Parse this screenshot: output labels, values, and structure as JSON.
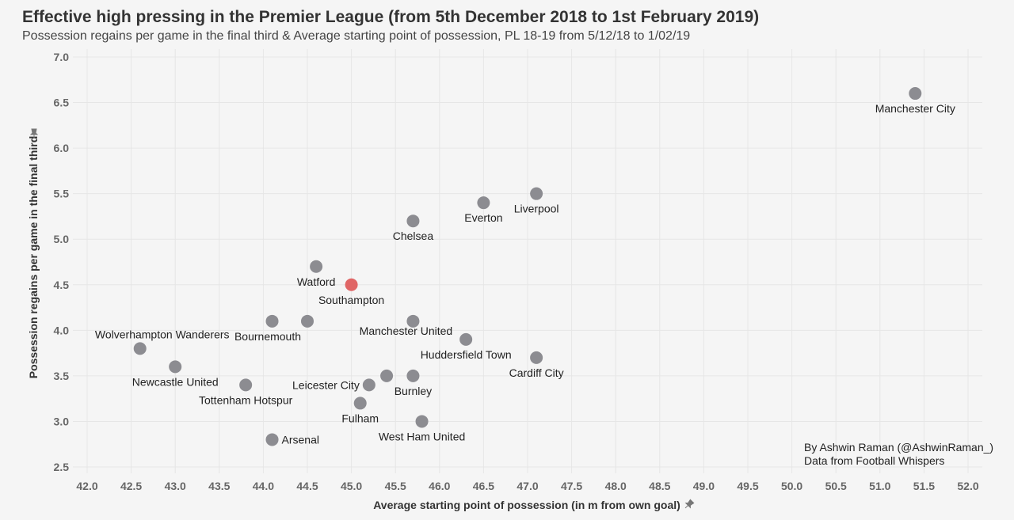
{
  "chart_data": {
    "type": "scatter",
    "title": "Effective high pressing in the Premier League (from 5th December 2018 to 1st February 2019)",
    "subtitle": "Possession regains per game in the final third & Average starting point of possession, PL 18-19 from 5/12/18 to 1/02/19",
    "xlabel": "Average starting point of possession (in m from own goal)",
    "ylabel": "Possession regains per game in the final third",
    "axis_icon": "pin-icon",
    "xlim": [
      42.0,
      52.0
    ],
    "ylim": [
      2.5,
      7.0
    ],
    "x_ticks": [
      "42.0",
      "42.5",
      "43.0",
      "43.5",
      "44.0",
      "44.5",
      "45.0",
      "45.5",
      "46.0",
      "46.5",
      "47.0",
      "47.5",
      "48.0",
      "48.5",
      "49.0",
      "49.5",
      "50.0",
      "50.5",
      "51.0",
      "51.5",
      "52.0"
    ],
    "y_ticks": [
      "2.5",
      "3.0",
      "3.5",
      "4.0",
      "4.5",
      "5.0",
      "5.5",
      "6.0",
      "6.5",
      "7.0"
    ],
    "grid": true,
    "default_color": "#8c8c91",
    "highlight_color": "#e06666",
    "points": [
      {
        "team": "Manchester City",
        "x": 51.4,
        "y": 6.6
      },
      {
        "team": "Liverpool",
        "x": 47.1,
        "y": 5.5
      },
      {
        "team": "Everton",
        "x": 46.5,
        "y": 5.4
      },
      {
        "team": "Chelsea",
        "x": 45.7,
        "y": 5.2
      },
      {
        "team": "Watford",
        "x": 44.6,
        "y": 4.7
      },
      {
        "team": "Southampton",
        "x": 45.0,
        "y": 4.5,
        "highlight": true
      },
      {
        "team": "",
        "x": 44.1,
        "y": 4.1
      },
      {
        "team": "Bournemouth",
        "x": 44.5,
        "y": 4.1
      },
      {
        "team": "Manchester United",
        "x": 45.7,
        "y": 4.1
      },
      {
        "team": "Wolverhampton Wanderers",
        "x": 42.6,
        "y": 3.8
      },
      {
        "team": "Huddersfield Town",
        "x": 46.3,
        "y": 3.9
      },
      {
        "team": "Cardiff City",
        "x": 47.1,
        "y": 3.7
      },
      {
        "team": "Newcastle United",
        "x": 43.0,
        "y": 3.6
      },
      {
        "team": "",
        "x": 45.4,
        "y": 3.5
      },
      {
        "team": "Burnley",
        "x": 45.7,
        "y": 3.5
      },
      {
        "team": "Leicester City",
        "x": 45.2,
        "y": 3.4
      },
      {
        "team": "Tottenham Hotspur",
        "x": 43.8,
        "y": 3.4
      },
      {
        "team": "Fulham",
        "x": 45.1,
        "y": 3.2
      },
      {
        "team": "West Ham United",
        "x": 45.8,
        "y": 3.0
      },
      {
        "team": "Arsenal",
        "x": 44.1,
        "y": 2.8
      }
    ]
  },
  "credits": {
    "author": "By Ashwin Raman (@AshwinRaman_)",
    "source": "Data from Football Whispers"
  }
}
